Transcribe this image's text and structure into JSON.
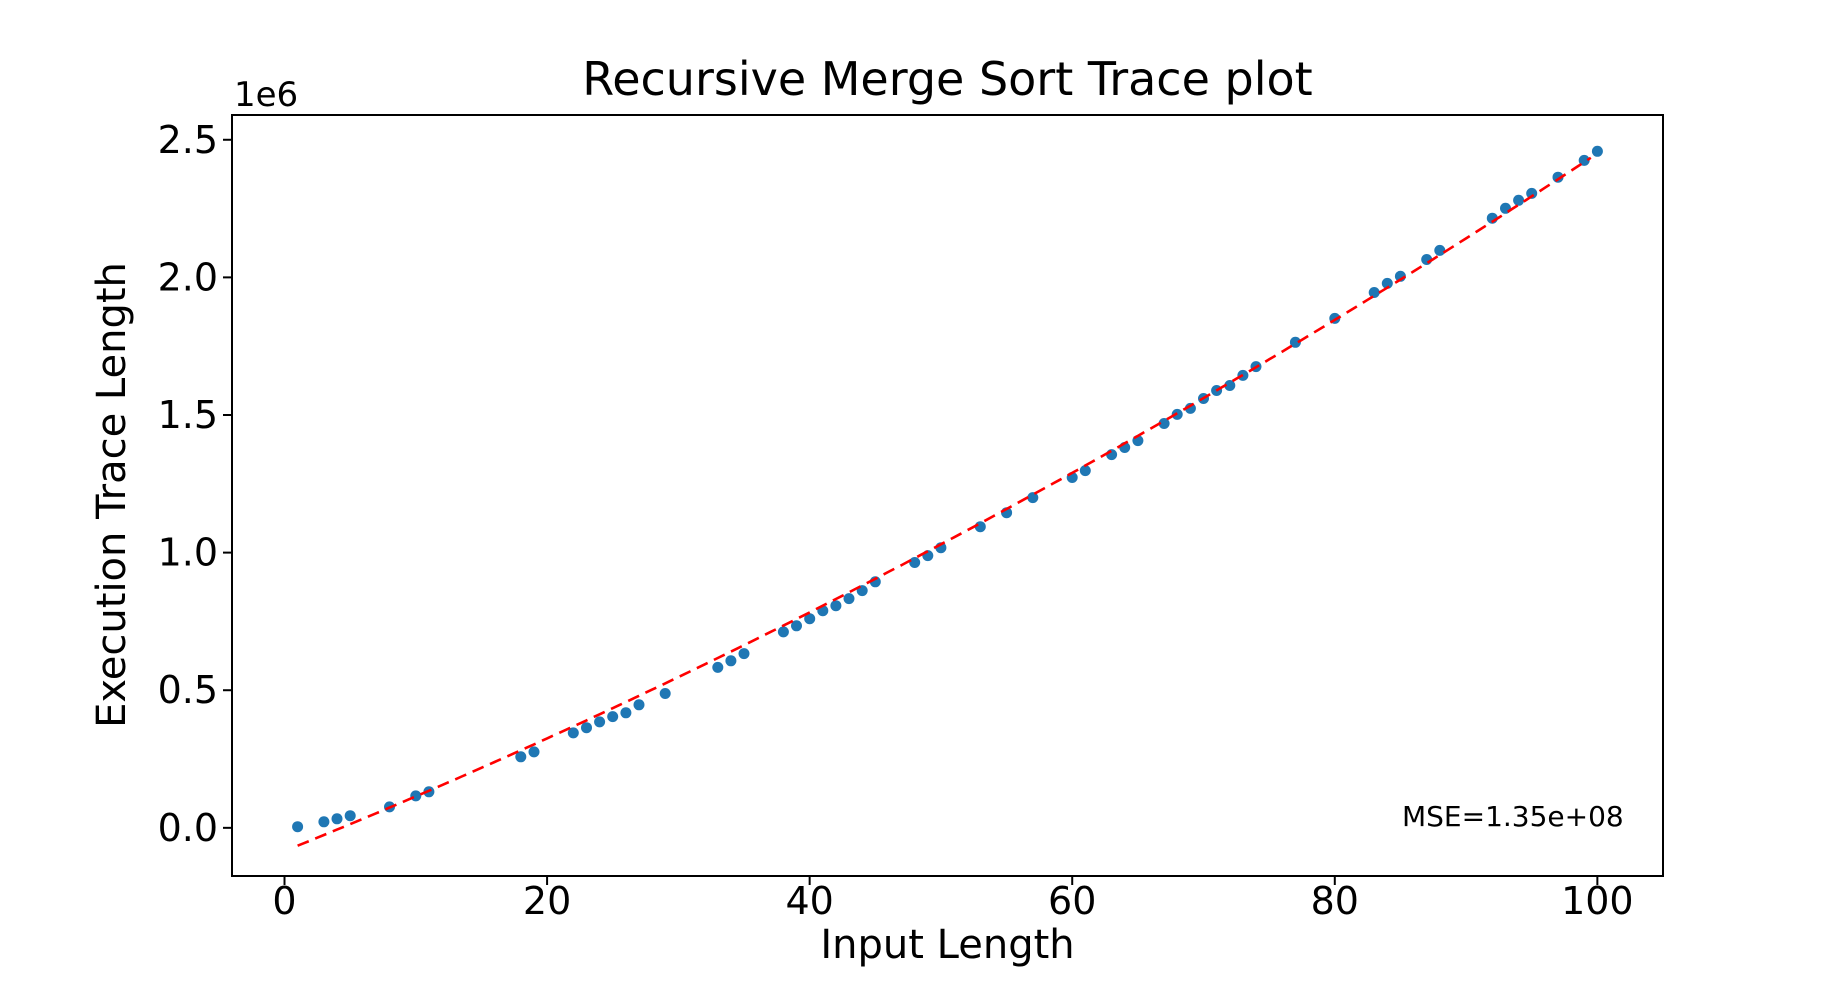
{
  "chart_data": {
    "type": "scatter",
    "title": "Recursive Merge Sort Trace plot",
    "xlabel": "Input Length",
    "ylabel": "Execution Trace Length",
    "y_offset_text": "1e6",
    "annotation": "MSE=1.35e+08",
    "grid": false,
    "legend": false,
    "xlim": [
      -4,
      105
    ],
    "ylim": [
      -175000,
      2590000
    ],
    "x_ticks": [
      {
        "label": "0",
        "value": 0
      },
      {
        "label": "20",
        "value": 20
      },
      {
        "label": "40",
        "value": 40
      },
      {
        "label": "60",
        "value": 60
      },
      {
        "label": "80",
        "value": 80
      },
      {
        "label": "100",
        "value": 100
      }
    ],
    "y_ticks": [
      {
        "label": "0.0",
        "value": 0
      },
      {
        "label": "0.5",
        "value": 500000
      },
      {
        "label": "1.0",
        "value": 1000000
      },
      {
        "label": "1.5",
        "value": 1500000
      },
      {
        "label": "2.0",
        "value": 2000000
      },
      {
        "label": "2.5",
        "value": 2500000
      }
    ],
    "series": [
      {
        "name": "execution-trace-points",
        "type": "scatter",
        "color": "#1f77b4",
        "marker_radius": 5.5,
        "x": [
          1,
          3,
          4,
          5,
          8,
          10,
          11,
          18,
          19,
          22,
          23,
          24,
          25,
          26,
          27,
          29,
          33,
          34,
          35,
          38,
          39,
          40,
          41,
          42,
          43,
          44,
          45,
          48,
          49,
          50,
          53,
          55,
          57,
          60,
          61,
          63,
          64,
          65,
          67,
          68,
          69,
          70,
          71,
          72,
          73,
          74,
          77,
          80,
          83,
          84,
          85,
          87,
          88,
          92,
          93,
          94,
          95,
          97,
          99,
          100
        ],
        "y": [
          4000,
          22000,
          33000,
          44000,
          76000,
          116000,
          131000,
          258000,
          276000,
          345000,
          364000,
          385000,
          404000,
          418000,
          447000,
          488000,
          583000,
          607000,
          633000,
          712000,
          734000,
          760000,
          789000,
          807000,
          833000,
          862000,
          894000,
          964000,
          989000,
          1018000,
          1094000,
          1145000,
          1200000,
          1273000,
          1298000,
          1356000,
          1382000,
          1407000,
          1469000,
          1502000,
          1524000,
          1560000,
          1589000,
          1607000,
          1644000,
          1676000,
          1764000,
          1851000,
          1945000,
          1978000,
          2004000,
          2065000,
          2098000,
          2215000,
          2251000,
          2280000,
          2305000,
          2364000,
          2425000,
          2458000
        ]
      },
      {
        "name": "quadratic-fit-line",
        "type": "line",
        "color": "#ff0000",
        "linestyle": "dashed",
        "fit_coefficients": [
          61.1,
          19235,
          -84296
        ],
        "x_range": [
          1,
          99.6
        ]
      }
    ]
  }
}
